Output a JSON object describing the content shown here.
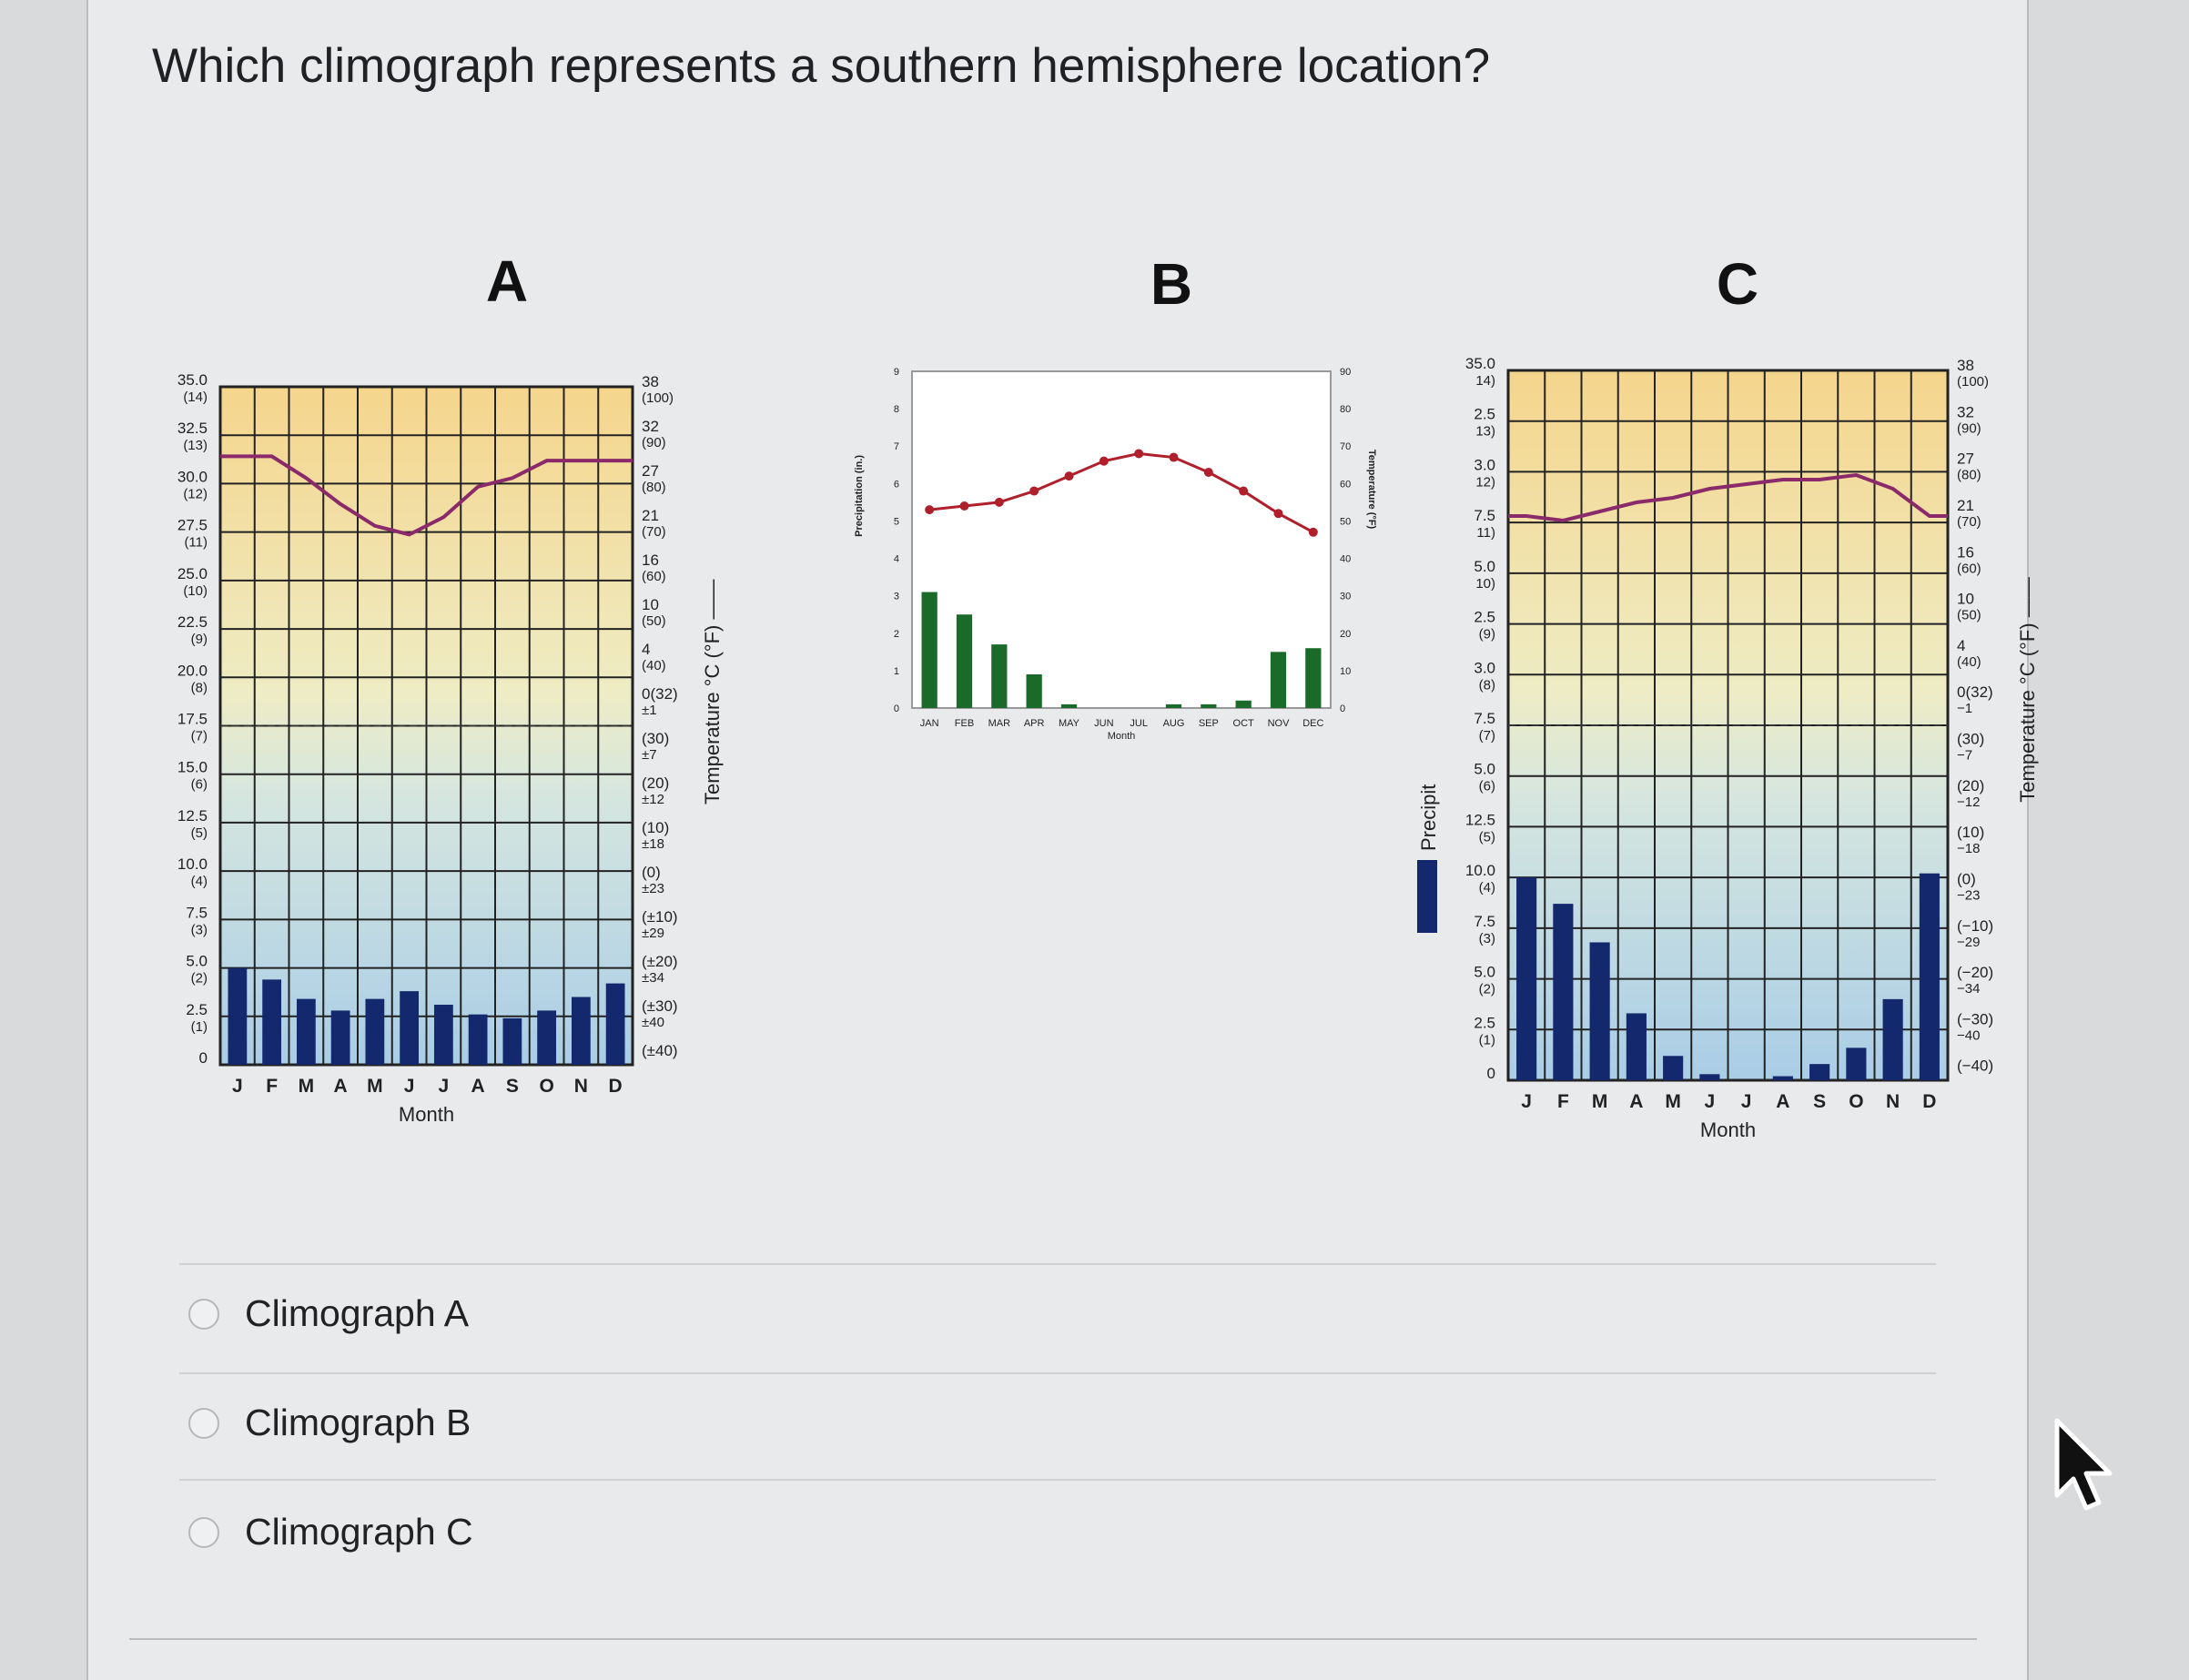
{
  "question": "Which climograph represents a southern hemisphere location?",
  "options": [
    {
      "label": "Climograph A"
    },
    {
      "label": "Climograph B"
    },
    {
      "label": "Climograph C"
    }
  ],
  "colors": {
    "precip_blue": "#14286e",
    "temp_line": "#8a2a6a",
    "precip_green": "#1a6b2a",
    "temp_red": "#b0202c"
  },
  "chart_data": [
    {
      "id": "A",
      "type": "bar+line",
      "title": "A",
      "categories": [
        "J",
        "F",
        "M",
        "A",
        "M",
        "J",
        "J",
        "A",
        "S",
        "O",
        "N",
        "D"
      ],
      "xlabel": "Month",
      "ylabel_right": "Temperature °C (°F)",
      "left_ticks": [
        {
          "v": "35.0",
          "s": "(14)"
        },
        {
          "v": "32.5",
          "s": "(13)"
        },
        {
          "v": "30.0",
          "s": "(12)"
        },
        {
          "v": "27.5",
          "s": "(11)"
        },
        {
          "v": "25.0",
          "s": "(10)"
        },
        {
          "v": "22.5",
          "s": "(9)"
        },
        {
          "v": "20.0",
          "s": "(8)"
        },
        {
          "v": "17.5",
          "s": "(7)"
        },
        {
          "v": "15.0",
          "s": "(6)"
        },
        {
          "v": "12.5",
          "s": "(5)"
        },
        {
          "v": "10.0",
          "s": "(4)"
        },
        {
          "v": "7.5",
          "s": "(3)"
        },
        {
          "v": "5.0",
          "s": "(2)"
        },
        {
          "v": "2.5",
          "s": "(1)"
        },
        {
          "v": "0",
          "s": ""
        }
      ],
      "right_ticks": [
        {
          "v": "38",
          "s": "(100)"
        },
        {
          "v": "32",
          "s": "(90)"
        },
        {
          "v": "27",
          "s": "(80)"
        },
        {
          "v": "21",
          "s": "(70)"
        },
        {
          "v": "16",
          "s": "(60)"
        },
        {
          "v": "10",
          "s": "(50)"
        },
        {
          "v": "4",
          "s": "(40)"
        },
        {
          "v": "0(32)",
          "s": "±1"
        },
        {
          "v": "(30)",
          "s": "±7"
        },
        {
          "v": "(20)",
          "s": "±12"
        },
        {
          "v": "(10)",
          "s": "±18"
        },
        {
          "v": "(0)",
          "s": "±23"
        },
        {
          "v": "(±10)",
          "s": "±29"
        },
        {
          "v": "(±20)",
          "s": "±34"
        },
        {
          "v": "(±30)",
          "s": "±40"
        },
        {
          "v": "(±40)",
          "s": ""
        }
      ],
      "precip_cm": [
        5.0,
        4.4,
        3.4,
        2.8,
        3.4,
        3.8,
        3.1,
        2.6,
        2.4,
        2.8,
        3.5,
        4.2
      ],
      "temp_c": [
        30.0,
        30.0,
        27.5,
        24.5,
        22.0,
        21.0,
        23.0,
        26.5,
        27.5,
        29.5,
        29.5,
        29.5
      ]
    },
    {
      "id": "B",
      "type": "bar+line",
      "title": "B",
      "categories": [
        "JAN",
        "FEB",
        "MAR",
        "APR",
        "MAY",
        "JUN",
        "JUL",
        "AUG",
        "SEP",
        "OCT",
        "NOV",
        "DEC"
      ],
      "xlabel": "Month",
      "ylabel_left": "Precipitation (in.)",
      "ylabel_right": "Temperature (°F)",
      "left_ticks": [
        "9",
        "8",
        "7",
        "6",
        "5",
        "4",
        "3",
        "2",
        "1",
        "0"
      ],
      "right_ticks": [
        "90",
        "80",
        "70",
        "60",
        "50",
        "40",
        "30",
        "20",
        "10",
        "0"
      ],
      "precip_in": [
        3.1,
        2.5,
        1.7,
        0.9,
        0.1,
        0.0,
        0.0,
        0.1,
        0.1,
        0.2,
        1.5,
        1.6
      ],
      "temp_f": [
        53,
        54,
        55,
        58,
        62,
        66,
        68,
        67,
        63,
        58,
        52,
        47
      ]
    },
    {
      "id": "C",
      "type": "bar+line",
      "title": "C",
      "categories": [
        "J",
        "F",
        "M",
        "A",
        "M",
        "J",
        "J",
        "A",
        "S",
        "O",
        "N",
        "D"
      ],
      "xlabel": "Month",
      "legend_label": "Precipit",
      "ylabel_right": "Temperature °C (°F)",
      "left_ticks": [
        {
          "v": "35.0",
          "s": "14)"
        },
        {
          "v": "2.5",
          "s": "13)"
        },
        {
          "v": "3.0",
          "s": "12)"
        },
        {
          "v": "7.5",
          "s": "11)"
        },
        {
          "v": "5.0",
          "s": "10)"
        },
        {
          "v": "2.5",
          "s": "(9)"
        },
        {
          "v": "3.0",
          "s": "(8)"
        },
        {
          "v": "7.5",
          "s": "(7)"
        },
        {
          "v": "5.0",
          "s": "(6)"
        },
        {
          "v": "12.5",
          "s": "(5)"
        },
        {
          "v": "10.0",
          "s": "(4)"
        },
        {
          "v": "7.5",
          "s": "(3)"
        },
        {
          "v": "5.0",
          "s": "(2)"
        },
        {
          "v": "2.5",
          "s": "(1)"
        },
        {
          "v": "0",
          "s": ""
        }
      ],
      "right_ticks": [
        {
          "v": "38",
          "s": "(100)"
        },
        {
          "v": "32",
          "s": "(90)"
        },
        {
          "v": "27",
          "s": "(80)"
        },
        {
          "v": "21",
          "s": "(70)"
        },
        {
          "v": "16",
          "s": "(60)"
        },
        {
          "v": "10",
          "s": "(50)"
        },
        {
          "v": "4",
          "s": "(40)"
        },
        {
          "v": "0(32)",
          "s": "−1"
        },
        {
          "v": "(30)",
          "s": "−7"
        },
        {
          "v": "(20)",
          "s": "−12"
        },
        {
          "v": "(10)",
          "s": "−18"
        },
        {
          "v": "(0)",
          "s": "−23"
        },
        {
          "v": "(−10)",
          "s": "−29"
        },
        {
          "v": "(−20)",
          "s": "−34"
        },
        {
          "v": "(−30)",
          "s": "−40"
        },
        {
          "v": "(−40)",
          "s": ""
        }
      ],
      "precip_cm": [
        10.0,
        8.7,
        6.8,
        3.3,
        1.2,
        0.3,
        0.0,
        0.2,
        0.8,
        1.6,
        4.0,
        10.2
      ],
      "temp_c": [
        22.0,
        21.5,
        22.5,
        23.5,
        24.0,
        25.0,
        25.5,
        26.0,
        26.0,
        26.5,
        25.0,
        22.0
      ]
    }
  ]
}
